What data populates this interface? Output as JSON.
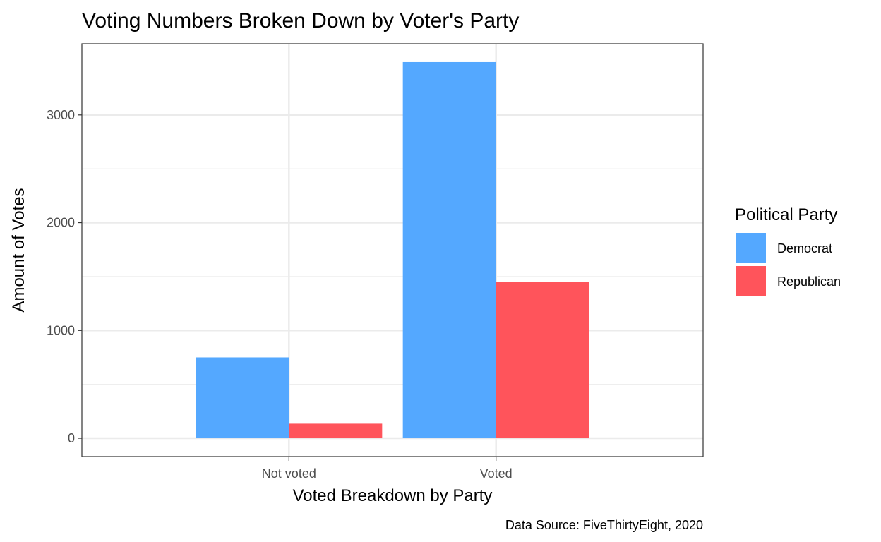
{
  "chart_data": {
    "type": "bar",
    "title": "Voting Numbers Broken Down by Voter's Party",
    "xlabel": "Voted Breakdown by Party",
    "ylabel": "Amount of Votes",
    "caption": "Data Source: FiveThirtyEight, 2020",
    "categories": [
      "Not voted",
      "Voted"
    ],
    "series": [
      {
        "name": "Democrat",
        "values": [
          750,
          3490
        ],
        "color": "#54A8FF"
      },
      {
        "name": "Republican",
        "values": [
          135,
          1450
        ],
        "color": "#FF545B"
      }
    ],
    "ylim": [
      -170,
      3660
    ],
    "yticks": [
      0,
      1000,
      2000,
      3000
    ],
    "yticklabels": [
      "0",
      "1000",
      "2000",
      "3000"
    ],
    "legend": {
      "title": "Political Party",
      "position": "right"
    },
    "grid": true,
    "bar_position": "dodge"
  }
}
